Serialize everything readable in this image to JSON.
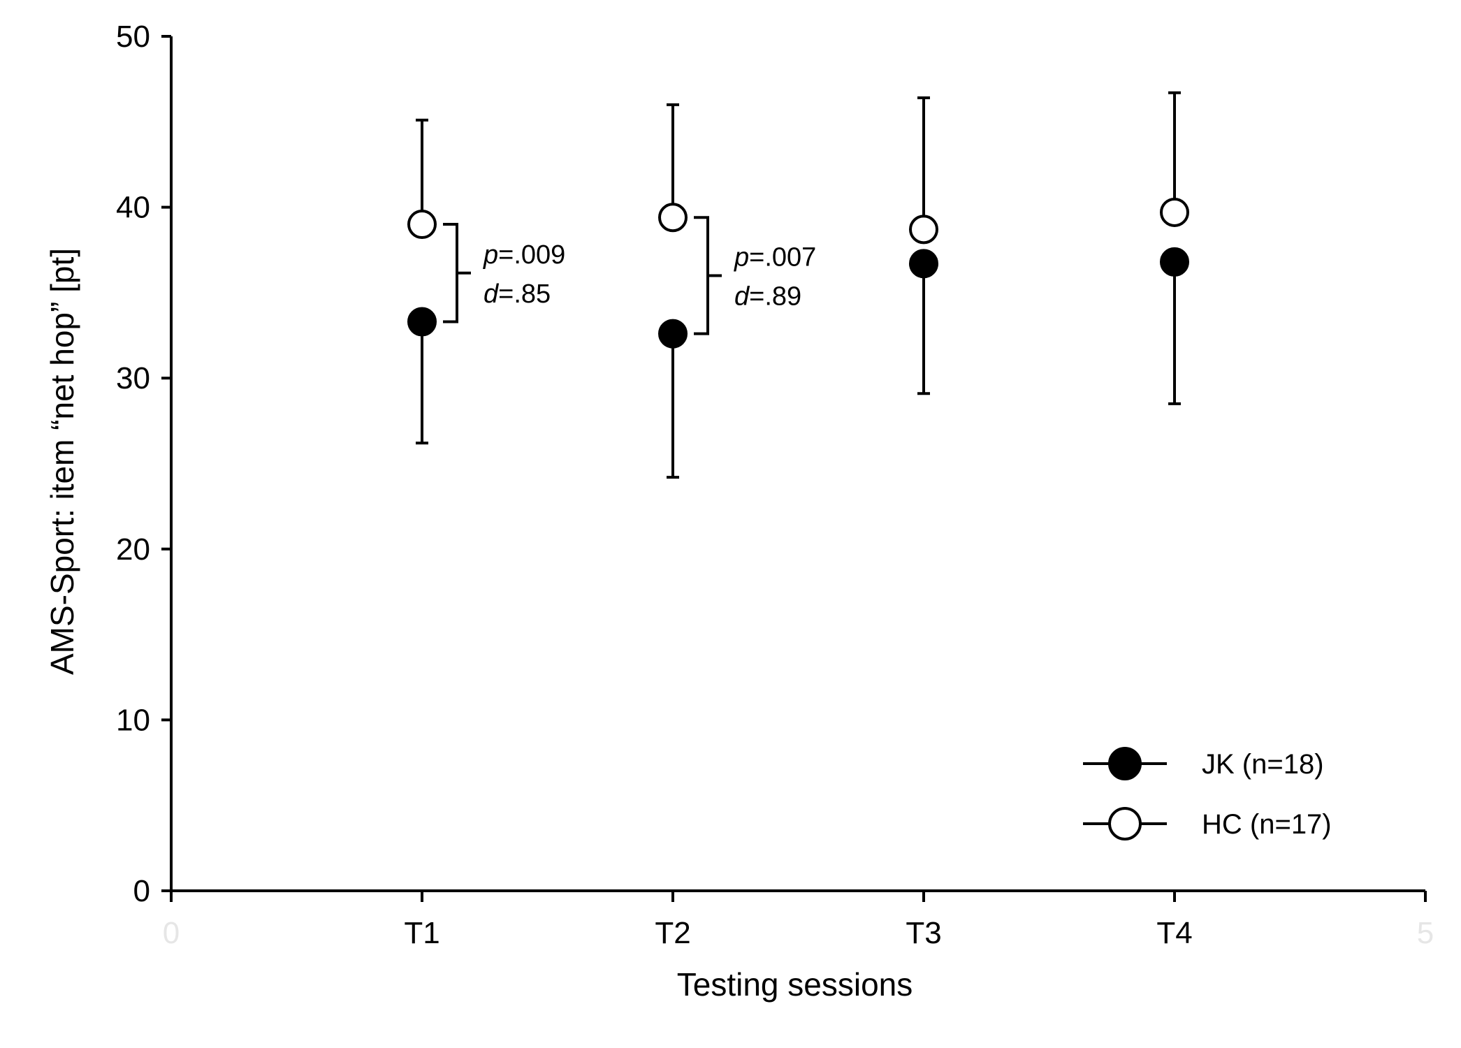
{
  "chart_data": {
    "type": "scatter",
    "xlabel": "Testing sessions",
    "ylabel": "AMS-Sport: item “net hop” [pt]",
    "xlim": [
      0,
      5
    ],
    "ylim": [
      0,
      50
    ],
    "y_ticks": [
      "0",
      "10",
      "20",
      "30",
      "40",
      "50"
    ],
    "x_ticks": [
      {
        "x": 1,
        "label": "T1"
      },
      {
        "x": 2,
        "label": "T2"
      },
      {
        "x": 3,
        "label": "T3"
      },
      {
        "x": 4,
        "label": "T4"
      }
    ],
    "x_ghost_ticks": [
      {
        "x": 0,
        "label": "0"
      },
      {
        "x": 5,
        "label": "5"
      }
    ],
    "legend_position": "bottom-right",
    "series": [
      {
        "name": "JK (n=18)",
        "marker": "filled-circle",
        "color": "#000000",
        "x": [
          1,
          2,
          3,
          4
        ],
        "y": [
          33.3,
          32.6,
          36.7,
          36.8
        ],
        "error_low": [
          7.1,
          8.4,
          7.6,
          8.3
        ],
        "error_high": [
          0,
          0,
          0,
          0
        ]
      },
      {
        "name": "HC (n=17)",
        "marker": "open-circle",
        "color": "#000000",
        "x": [
          1,
          2,
          3,
          4
        ],
        "y": [
          39.0,
          39.4,
          38.7,
          39.7
        ],
        "error_low": [
          0,
          0,
          0,
          0
        ],
        "error_high": [
          6.1,
          6.6,
          7.7,
          7.0
        ]
      }
    ],
    "annotations": [
      {
        "x": 1,
        "y_low": 33.3,
        "y_high": 39.0,
        "p_letter": "p",
        "p_value": "=.009",
        "d_letter": "d",
        "d_value": "=.85"
      },
      {
        "x": 2,
        "y_low": 32.6,
        "y_high": 39.4,
        "p_letter": "p",
        "p_value": "=.007",
        "d_letter": "d",
        "d_value": "=.89"
      }
    ]
  }
}
